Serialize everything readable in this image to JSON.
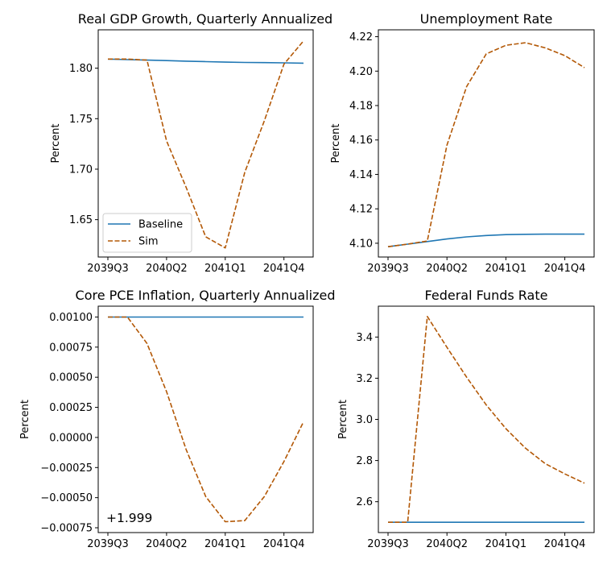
{
  "legend": {
    "entries": [
      "Baseline",
      "Sim"
    ]
  },
  "colors": {
    "baseline": "#1f77b4",
    "sim": "#b35806"
  },
  "chart_data": [
    {
      "type": "line",
      "title": "Real GDP Growth, Quarterly Annualized",
      "ylabel": "Percent",
      "x": [
        "2039Q3",
        "2039Q4",
        "2040Q1",
        "2040Q2",
        "2040Q3",
        "2040Q4",
        "2041Q1",
        "2041Q2",
        "2041Q3",
        "2041Q4",
        "2042Q1"
      ],
      "xticks": [
        "2039Q3",
        "2040Q2",
        "2041Q1",
        "2041Q4"
      ],
      "ylim": [
        1.613,
        1.838
      ],
      "yticks": [
        1.65,
        1.7,
        1.75,
        1.8
      ],
      "ytick_labels": [
        "1.65",
        "1.70",
        "1.75",
        "1.80"
      ],
      "legend": "lower-left",
      "series": [
        {
          "name": "Baseline",
          "style": "solid",
          "values": [
            1.809,
            1.8085,
            1.808,
            1.8075,
            1.807,
            1.8065,
            1.806,
            1.8057,
            1.8055,
            1.8053,
            1.805
          ]
        },
        {
          "name": "Sim",
          "style": "dashed",
          "values": [
            1.809,
            1.809,
            1.808,
            1.728,
            1.682,
            1.633,
            1.622,
            1.697,
            1.748,
            1.804,
            1.827
          ]
        }
      ]
    },
    {
      "type": "line",
      "title": "Unemployment Rate",
      "ylabel": "Percent",
      "x": [
        "2039Q3",
        "2039Q4",
        "2040Q1",
        "2040Q2",
        "2040Q3",
        "2040Q4",
        "2041Q1",
        "2041Q2",
        "2041Q3",
        "2041Q4",
        "2042Q1"
      ],
      "xticks": [
        "2039Q3",
        "2040Q2",
        "2041Q1",
        "2041Q4"
      ],
      "ylim": [
        4.092,
        4.224
      ],
      "yticks": [
        4.1,
        4.12,
        4.14,
        4.16,
        4.18,
        4.2,
        4.22
      ],
      "ytick_labels": [
        "4.10",
        "4.12",
        "4.14",
        "4.16",
        "4.18",
        "4.20",
        "4.22"
      ],
      "series": [
        {
          "name": "Baseline",
          "style": "solid",
          "values": [
            4.098,
            4.0995,
            4.101,
            4.1025,
            4.1037,
            4.1045,
            4.105,
            4.1052,
            4.1053,
            4.1053,
            4.1053
          ]
        },
        {
          "name": "Sim",
          "style": "dashed",
          "values": [
            4.098,
            4.0995,
            4.1013,
            4.157,
            4.191,
            4.21,
            4.215,
            4.2165,
            4.2135,
            4.209,
            4.202
          ]
        }
      ]
    },
    {
      "type": "line",
      "title": "Core PCE Inflation, Quarterly Annualized",
      "ylabel": "Percent",
      "offset_label": "+1.999",
      "x": [
        "2039Q3",
        "2039Q4",
        "2040Q1",
        "2040Q2",
        "2040Q3",
        "2040Q4",
        "2041Q1",
        "2041Q2",
        "2041Q3",
        "2041Q4",
        "2042Q1"
      ],
      "xticks": [
        "2039Q3",
        "2040Q2",
        "2041Q1",
        "2041Q4"
      ],
      "ylim": [
        -0.00079,
        0.00109
      ],
      "yticks": [
        -0.00075,
        -0.0005,
        -0.00025,
        0,
        0.00025,
        0.0005,
        0.00075,
        0.001
      ],
      "ytick_labels": [
        "−0.00075",
        "−0.00050",
        "−0.00025",
        "0.00000",
        "0.00025",
        "0.00050",
        "0.00075",
        "0.00100"
      ],
      "series": [
        {
          "name": "Baseline",
          "style": "solid",
          "values": [
            0.001,
            0.001,
            0.001,
            0.001,
            0.001,
            0.001,
            0.001,
            0.001,
            0.001,
            0.001,
            0.001
          ]
        },
        {
          "name": "Sim",
          "style": "dashed",
          "values": [
            0.001,
            0.001,
            0.00078,
            0.00038,
            -0.0001,
            -0.00049,
            -0.0007,
            -0.00069,
            -0.00049,
            -0.0002,
            0.00013
          ]
        }
      ]
    },
    {
      "type": "line",
      "title": "Federal Funds Rate",
      "ylabel": "Percent",
      "x": [
        "2039Q3",
        "2039Q4",
        "2040Q1",
        "2040Q2",
        "2040Q3",
        "2040Q4",
        "2041Q1",
        "2041Q2",
        "2041Q3",
        "2041Q4",
        "2042Q1"
      ],
      "xticks": [
        "2039Q3",
        "2040Q2",
        "2041Q1",
        "2041Q4"
      ],
      "ylim": [
        2.45,
        3.55
      ],
      "yticks": [
        2.6,
        2.8,
        3.0,
        3.2,
        3.4
      ],
      "ytick_labels": [
        "2.6",
        "2.8",
        "3.0",
        "3.2",
        "3.4"
      ],
      "series": [
        {
          "name": "Baseline",
          "style": "solid",
          "values": [
            2.5,
            2.5,
            2.5,
            2.5,
            2.5,
            2.5,
            2.5,
            2.5,
            2.5,
            2.5,
            2.5
          ]
        },
        {
          "name": "Sim",
          "style": "dashed",
          "values": [
            2.5,
            2.5,
            3.5,
            3.35,
            3.205,
            3.07,
            2.955,
            2.86,
            2.785,
            2.735,
            2.69
          ]
        }
      ]
    }
  ]
}
